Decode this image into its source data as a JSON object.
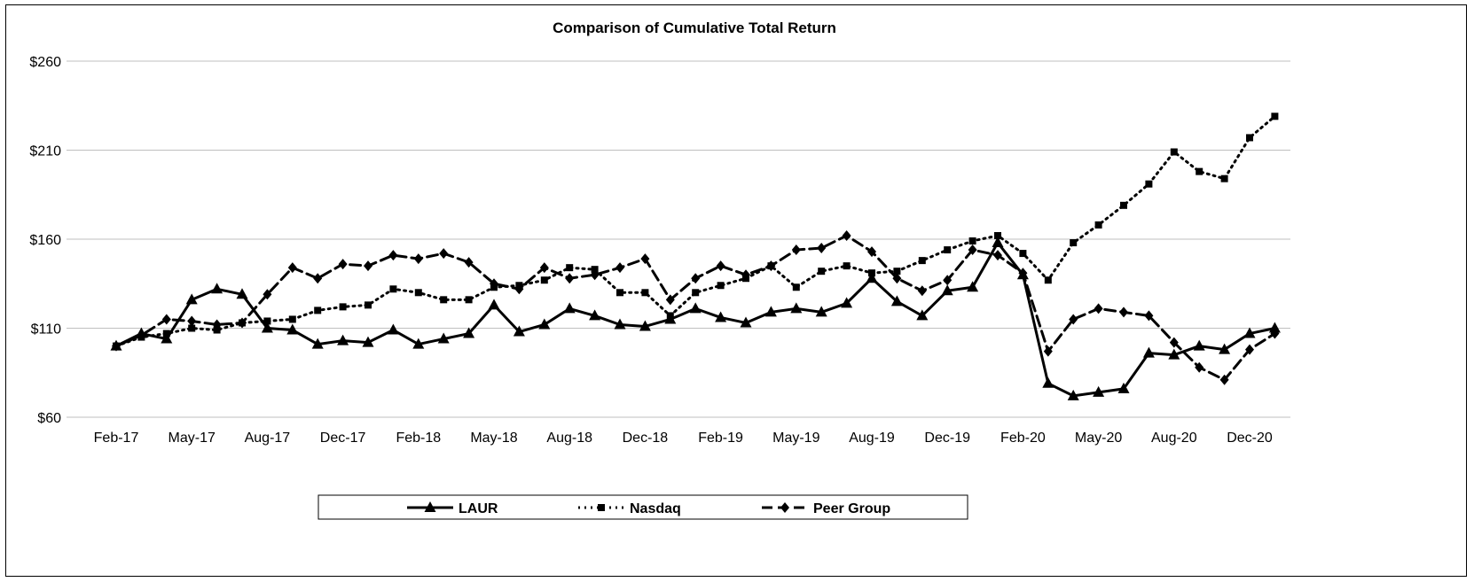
{
  "chart_data": {
    "type": "line",
    "title": "Comparison of Cumulative Total Return",
    "xlabel": "",
    "ylabel": "",
    "ylim": [
      60,
      260
    ],
    "yticks": [
      60,
      110,
      160,
      210,
      260
    ],
    "ytick_labels": [
      "$60",
      "$110",
      "$160",
      "$210",
      "$260"
    ],
    "grid": "horizontal",
    "legend_position": "bottom",
    "xtick_labels": [
      {
        "label": "Feb-17",
        "index": 0
      },
      {
        "label": "May-17",
        "index": 3
      },
      {
        "label": "Aug-17",
        "index": 6
      },
      {
        "label": "Dec-17",
        "index": 9
      },
      {
        "label": "Feb-18",
        "index": 12
      },
      {
        "label": "May-18",
        "index": 15
      },
      {
        "label": "Aug-18",
        "index": 18
      },
      {
        "label": "Dec-18",
        "index": 21
      },
      {
        "label": "Feb-19",
        "index": 24
      },
      {
        "label": "May-19",
        "index": 27
      },
      {
        "label": "Aug-19",
        "index": 30
      },
      {
        "label": "Dec-19",
        "index": 33
      },
      {
        "label": "Feb-20",
        "index": 36
      },
      {
        "label": "May-20",
        "index": 39
      },
      {
        "label": "Aug-20",
        "index": 42
      },
      {
        "label": "Dec-20",
        "index": 45
      }
    ],
    "series": [
      {
        "name": "LAUR",
        "style": "solid",
        "marker": "triangle",
        "values": [
          100,
          107,
          104,
          126,
          132,
          129,
          110,
          109,
          101,
          103,
          102,
          109,
          101,
          104,
          107,
          123,
          108,
          112,
          121,
          117,
          112,
          111,
          115,
          121,
          116,
          113,
          119,
          121,
          119,
          124,
          138,
          125,
          117,
          131,
          133,
          158,
          140,
          79,
          72,
          74,
          76,
          96,
          95,
          100,
          98,
          107,
          110
        ]
      },
      {
        "name": "Nasdaq",
        "style": "dotted",
        "marker": "square",
        "values": [
          100,
          105,
          107,
          110,
          109,
          113,
          114,
          115,
          120,
          122,
          123,
          132,
          130,
          126,
          126,
          133,
          134,
          137,
          144,
          143,
          130,
          130,
          117,
          130,
          134,
          138,
          145,
          133,
          142,
          145,
          141,
          142,
          148,
          154,
          159,
          162,
          152,
          137,
          158,
          168,
          179,
          191,
          209,
          198,
          194,
          217,
          229
        ]
      },
      {
        "name": "Peer Group",
        "style": "dashed",
        "marker": "diamond",
        "values": [
          100,
          106,
          115,
          114,
          112,
          113,
          129,
          144,
          138,
          146,
          145,
          151,
          149,
          152,
          147,
          135,
          132,
          144,
          138,
          140,
          144,
          149,
          126,
          138,
          145,
          140,
          145,
          154,
          155,
          162,
          153,
          138,
          131,
          137,
          154,
          151,
          141,
          97,
          115,
          121,
          119,
          117,
          102,
          88,
          81,
          98,
          107
        ]
      }
    ]
  }
}
